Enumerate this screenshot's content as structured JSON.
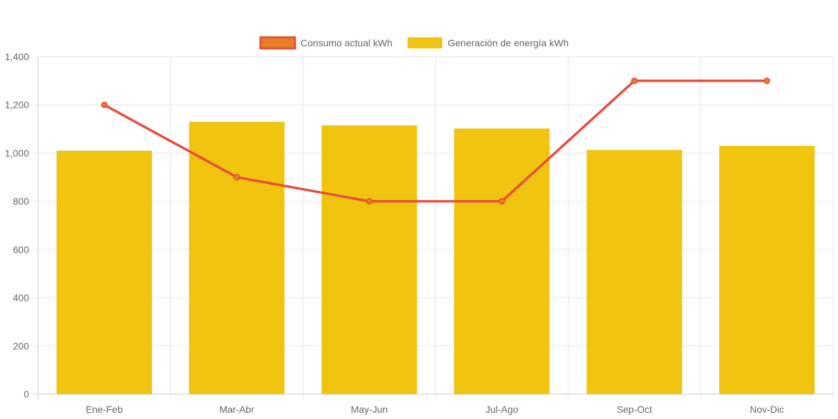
{
  "chart_data": {
    "type": "bar",
    "categories": [
      "Ene-Feb",
      "Mar-Abr",
      "May-Jun",
      "Jul-Ago",
      "Sep-Oct",
      "Nov-Dic"
    ],
    "series": [
      {
        "name": "Consumo actual kWh",
        "type": "line",
        "values": [
          1200,
          900,
          800,
          800,
          1300,
          1300
        ],
        "color": "#e74c3c",
        "point_color": "#e67e22"
      },
      {
        "name": "Generación de energía kWh",
        "type": "bar",
        "values": [
          1010,
          1130,
          1115,
          1102,
          1013,
          1030
        ],
        "color": "#f1c40f"
      }
    ],
    "ylim": [
      0,
      1400
    ],
    "yticks": [
      "0",
      "200",
      "400",
      "600",
      "800",
      "1,000",
      "1,200",
      "1,400"
    ],
    "ytick_values": [
      0,
      200,
      400,
      600,
      800,
      1000,
      1200,
      1400
    ],
    "grid": true,
    "legend_position": "top-center"
  }
}
